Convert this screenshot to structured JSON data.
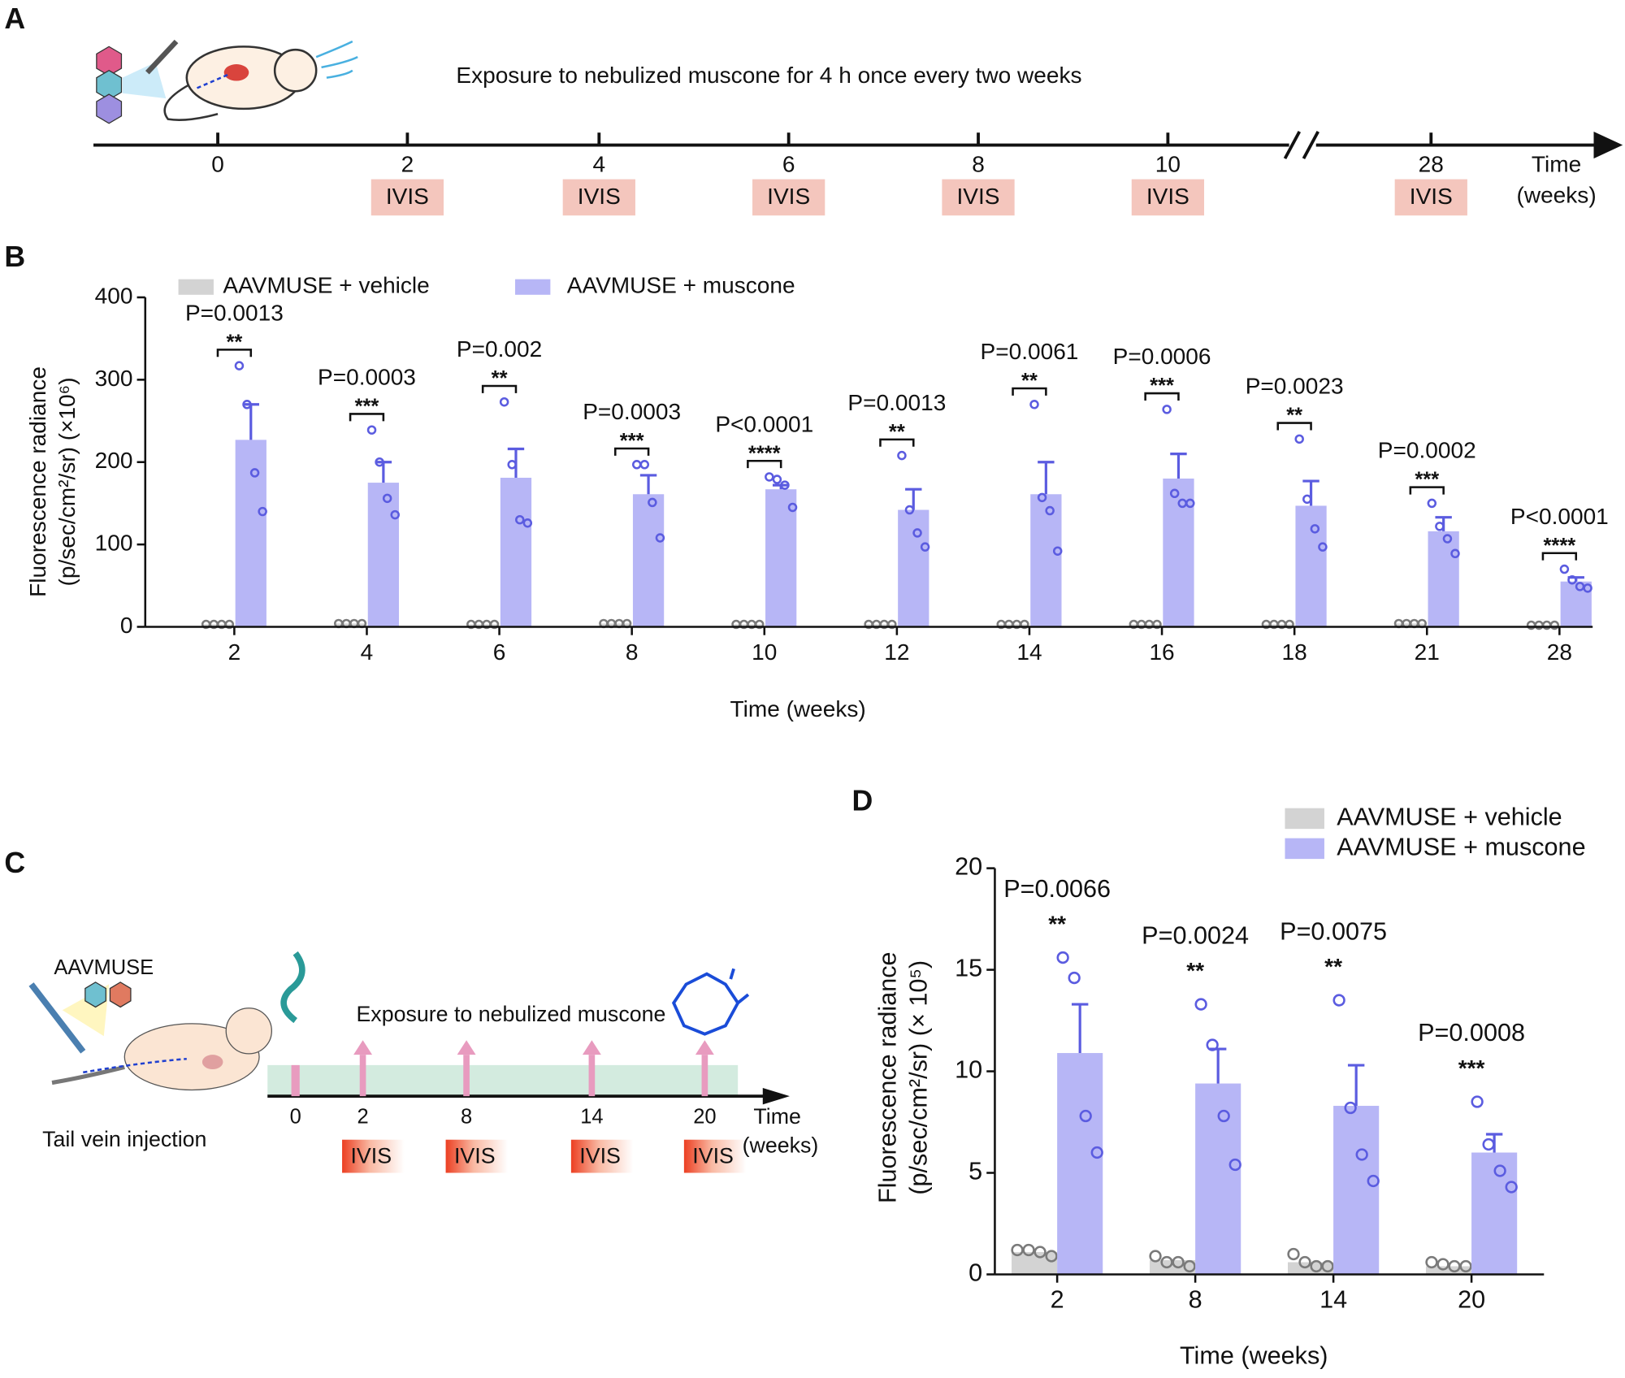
{
  "letters": {
    "a": "A",
    "b": "B",
    "c": "C",
    "d": "D"
  },
  "timeline_a": {
    "caption": "Exposure to nebulized muscone for 4 h once every two weeks",
    "ticks": [
      "0",
      "2",
      "4",
      "6",
      "8",
      "10",
      "28"
    ],
    "boxes": [
      "IVIS",
      "IVIS",
      "IVIS",
      "IVIS",
      "IVIS",
      "IVIS"
    ],
    "axis_title": "Time",
    "axis_unit": "(weeks)"
  },
  "timeline_c": {
    "vector": "AAVMUSE",
    "route": "Tail vein injection",
    "caption": "Exposure to nebulized muscone",
    "ticks": [
      "0",
      "2",
      "8",
      "14",
      "20"
    ],
    "boxes": [
      "IVIS",
      "IVIS",
      "IVIS",
      "IVIS"
    ],
    "axis_title": "Time",
    "axis_unit": "(weeks)"
  },
  "chart_data": [
    {
      "type": "bar",
      "ylabel": [
        "Fluorescence radiance",
        "(p/sec/cm²/sr) (×10⁶)"
      ],
      "xlabel": "Time (weeks)",
      "categories": [
        "2",
        "4",
        "6",
        "8",
        "10",
        "12",
        "14",
        "16",
        "18",
        "21",
        "28"
      ],
      "ylim": [
        0,
        400
      ],
      "yticks": [
        0,
        100,
        200,
        300,
        400
      ],
      "brackets": true,
      "series": [
        {
          "name": "AAVMUSE + vehicle",
          "color": "#d3d3d3",
          "point_color": "#7a7a7a",
          "values": [
            3,
            4,
            3,
            4,
            3,
            3,
            3,
            3,
            3,
            4,
            2
          ],
          "points": [
            [
              3,
              3,
              3,
              3
            ],
            [
              4,
              4,
              4,
              4
            ],
            [
              3,
              3,
              3,
              3
            ],
            [
              4,
              4,
              4,
              4
            ],
            [
              3,
              3,
              3,
              3
            ],
            [
              3,
              3,
              3,
              3
            ],
            [
              3,
              3,
              3,
              3
            ],
            [
              3,
              3,
              3,
              3
            ],
            [
              3,
              3,
              3,
              3
            ],
            [
              4,
              4,
              4,
              4
            ],
            [
              2,
              2,
              2,
              2
            ]
          ]
        },
        {
          "name": "AAVMUSE + muscone",
          "color": "#b7b6f6",
          "point_color": "#5b5ce0",
          "values": [
            227,
            175,
            181,
            161,
            167,
            142,
            161,
            180,
            147,
            116,
            55
          ],
          "errors": [
            43,
            25,
            35,
            23,
            5,
            25,
            39,
            30,
            30,
            17,
            5
          ],
          "points": [
            [
              317,
              270,
              187,
              140
            ],
            [
              239,
              200,
              156,
              136
            ],
            [
              273,
              197,
              130,
              126
            ],
            [
              197,
              197,
              151,
              108
            ],
            [
              182,
              179,
              172,
              145
            ],
            [
              208,
              142,
              114,
              97
            ],
            [
              270,
              157,
              141,
              92
            ],
            [
              264,
              162,
              150,
              150
            ],
            [
              228,
              155,
              119,
              97
            ],
            [
              150,
              122,
              107,
              89
            ],
            [
              70,
              57,
              49,
              47
            ]
          ]
        }
      ],
      "p_labels": [
        "P=0.0013",
        "P=0.0003",
        "P=0.002",
        "P=0.0003",
        "P<0.0001",
        "P=0.0013",
        "P=0.0061",
        "P=0.0006",
        "P=0.0023",
        "P=0.0002",
        "P<0.0001"
      ],
      "stars": [
        "**",
        "***",
        "**",
        "***",
        "****",
        "**",
        "**",
        "***",
        "**",
        "***",
        "****"
      ]
    },
    {
      "type": "bar",
      "ylabel": [
        "Fluorescence radiance",
        "(p/sec/cm²/sr) (× 10⁵)"
      ],
      "xlabel": "Time (weeks)",
      "categories": [
        "2",
        "8",
        "14",
        "20"
      ],
      "ylim": [
        0,
        20
      ],
      "yticks": [
        0,
        5,
        10,
        15,
        20
      ],
      "brackets": false,
      "series": [
        {
          "name": "AAVMUSE + vehicle",
          "color": "#d3d3d3",
          "point_color": "#7a7a7a",
          "values": [
            1.1,
            0.7,
            0.6,
            0.4
          ],
          "points": [
            [
              1.2,
              1.2,
              1.1,
              0.9
            ],
            [
              0.9,
              0.6,
              0.6,
              0.4
            ],
            [
              1.0,
              0.6,
              0.4,
              0.4
            ],
            [
              0.6,
              0.5,
              0.4,
              0.4
            ]
          ]
        },
        {
          "name": "AAVMUSE + muscone",
          "color": "#b7b6f6",
          "point_color": "#5b5ce0",
          "values": [
            10.9,
            9.4,
            8.3,
            6.0
          ],
          "errors": [
            2.4,
            1.7,
            2.0,
            0.9
          ],
          "points": [
            [
              15.6,
              14.6,
              7.8,
              6.0
            ],
            [
              13.3,
              11.3,
              7.8,
              5.4
            ],
            [
              13.5,
              8.2,
              5.9,
              4.6
            ],
            [
              8.5,
              6.4,
              5.1,
              4.3
            ]
          ]
        }
      ],
      "p_labels": [
        "P=0.0066",
        "P=0.0024",
        "P=0.0075",
        "P=0.0008"
      ],
      "stars": [
        "**",
        "**",
        "**",
        "***"
      ]
    }
  ]
}
